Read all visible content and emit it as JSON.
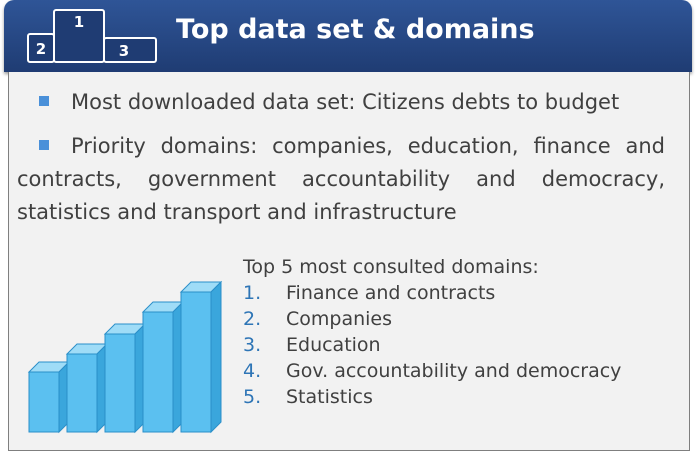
{
  "header": {
    "title": "Top data set & domains",
    "podium": [
      "1",
      "2",
      "3"
    ]
  },
  "bullets": [
    "Most downloaded data set: Citizens debts to budget",
    "Priority domains: companies, education, finance and contracts, government accountability and democracy, statistics and transport and infrastructure"
  ],
  "list": {
    "title": "Top 5 most consulted domains:",
    "numbers": [
      "1.",
      "2.",
      "3.",
      "4.",
      "5."
    ],
    "items": [
      "Finance and contracts",
      "Companies",
      "Education",
      "Gov. accountability and democracy",
      "Statistics"
    ]
  }
}
